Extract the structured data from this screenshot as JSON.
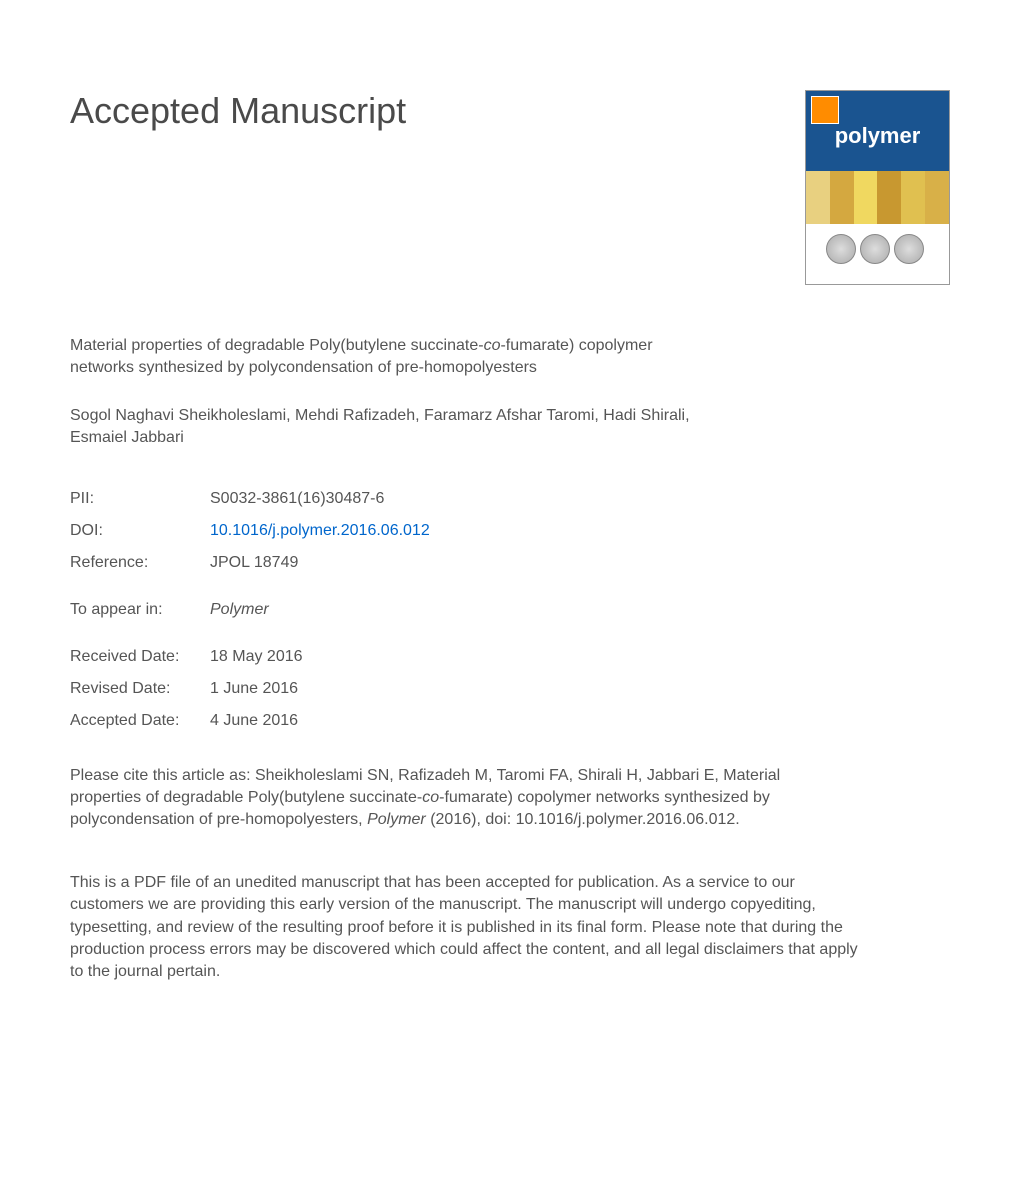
{
  "heading": "Accepted Manuscript",
  "journal_cover": {
    "title": "polymer",
    "background_color": "#1a5490",
    "stripe_colors": [
      "#e8d080",
      "#d4a840",
      "#f0d860",
      "#c89830",
      "#e0c050",
      "#d8b048"
    ]
  },
  "article_title_part1": "Material properties of degradable Poly(butylene succinate-",
  "article_title_italic1": "co",
  "article_title_part2": "-fumarate) copolymer networks synthesized by polycondensation of pre-homopolyesters",
  "authors": "Sogol Naghavi Sheikholeslami, Mehdi Rafizadeh, Faramarz Afshar Taromi, Hadi Shirali, Esmaiel Jabbari",
  "metadata": {
    "pii_label": "PII:",
    "pii_value": "S0032-3861(16)30487-6",
    "doi_label": "DOI:",
    "doi_value": "10.1016/j.polymer.2016.06.012",
    "reference_label": "Reference:",
    "reference_value": "JPOL 18749",
    "appear_label": "To appear in:",
    "appear_value": "Polymer",
    "received_label": "Received Date:",
    "received_value": "18 May 2016",
    "revised_label": "Revised Date:",
    "revised_value": "1 June 2016",
    "accepted_label": "Accepted Date:",
    "accepted_value": "4 June 2016"
  },
  "citation_part1": "Please cite this article as: Sheikholeslami SN, Rafizadeh M, Taromi FA, Shirali H, Jabbari E, Material properties of degradable Poly(butylene succinate-",
  "citation_italic1": "co",
  "citation_part2": "-fumarate) copolymer networks synthesized by polycondensation of pre-homopolyesters, ",
  "citation_italic2": "Polymer",
  "citation_part3": " (2016), doi: 10.1016/j.polymer.2016.06.012.",
  "disclaimer": "This is a PDF file of an unedited manuscript that has been accepted for publication. As a service to our customers we are providing this early version of the manuscript. The manuscript will undergo copyediting, typesetting, and review of the resulting proof before it is published in its final form. Please note that during the production process errors may be discovered which could affect the content, and all legal disclaimers that apply to the journal pertain.",
  "styles": {
    "body_font_size": 16,
    "heading_font_size": 36,
    "text_color": "#4a4a4a",
    "link_color": "#0066cc",
    "background_color": "#ffffff"
  }
}
